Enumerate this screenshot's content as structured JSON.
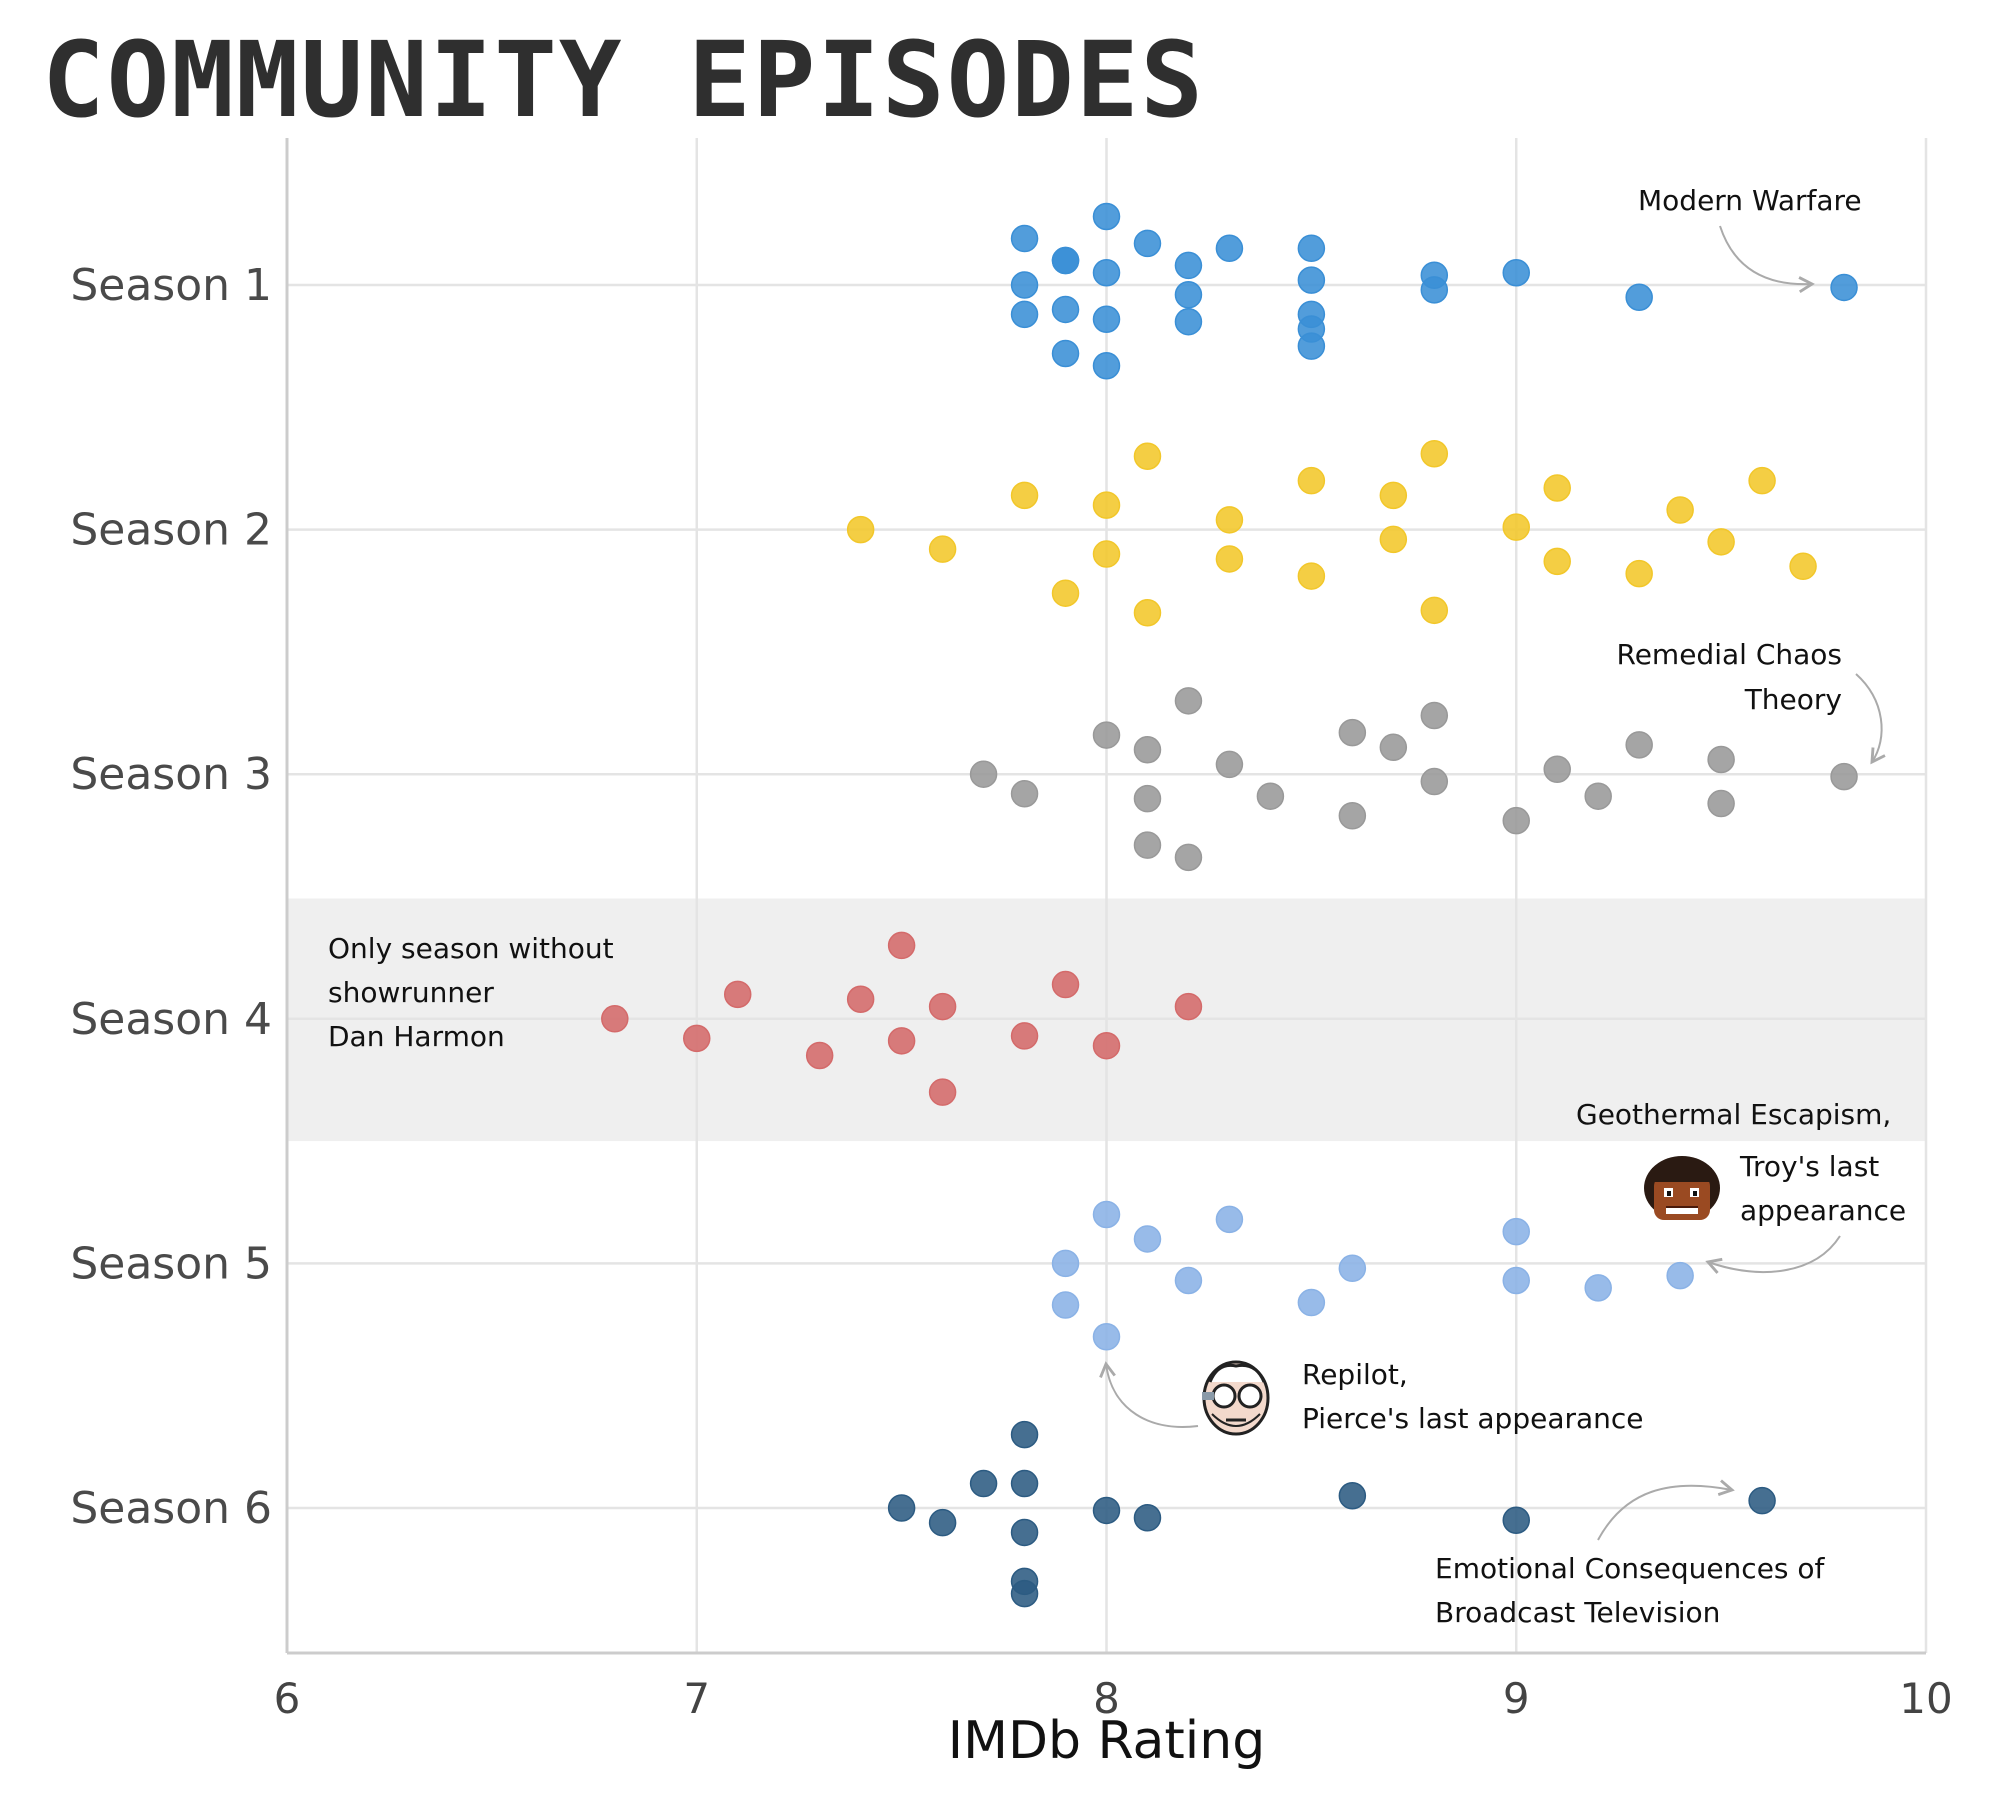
{
  "page": {
    "title": "COMMUNITY EPISODES"
  },
  "chart_data": {
    "type": "scatter",
    "title": "COMMUNITY EPISODES",
    "xlabel": "IMDb Rating",
    "ylabel": "",
    "xlim": [
      6,
      10
    ],
    "x_ticks": [
      "6",
      "7",
      "8",
      "9",
      "10"
    ],
    "grid": true,
    "categories": [
      "Season 1",
      "Season 2",
      "Season 3",
      "Season 4",
      "Season 5",
      "Season 6"
    ],
    "highlighted_category": "Season 4",
    "series": [
      {
        "name": "Season 1",
        "color": "#3a8fd6",
        "values": [
          8.0,
          7.8,
          7.9,
          8.1,
          7.9,
          8.3,
          8.5,
          8.2,
          7.8,
          8.0,
          8.5,
          8.8,
          9.0,
          8.2,
          8.8,
          9.8,
          9.3,
          7.9,
          7.8,
          8.5,
          8.0,
          8.2,
          8.5,
          8.5,
          7.9,
          8.0
        ]
      },
      {
        "name": "Season 2",
        "color": "#f2c72a",
        "values": [
          8.8,
          8.1,
          9.6,
          8.5,
          9.1,
          7.8,
          8.7,
          8.0,
          9.4,
          8.3,
          9.0,
          7.4,
          9.5,
          8.7,
          7.6,
          8.0,
          8.3,
          9.1,
          9.7,
          9.3,
          8.5,
          7.9,
          8.1,
          8.8
        ]
      },
      {
        "name": "Season 3",
        "color": "#999999",
        "values": [
          8.2,
          8.8,
          8.0,
          8.6,
          8.1,
          8.7,
          9.3,
          8.3,
          9.5,
          9.1,
          7.7,
          8.8,
          9.8,
          7.8,
          8.1,
          8.4,
          9.2,
          9.5,
          8.6,
          9.0,
          8.1,
          8.2
        ]
      },
      {
        "name": "Season 4",
        "color": "#d46a6a",
        "values": [
          7.5,
          7.9,
          7.1,
          7.4,
          7.6,
          8.2,
          6.8,
          7.0,
          7.5,
          7.8,
          8.0,
          7.3,
          7.6
        ]
      },
      {
        "name": "Season 5",
        "color": "#8ab2e6",
        "values": [
          8.0,
          8.3,
          9.0,
          8.1,
          8.6,
          9.4,
          7.9,
          8.2,
          9.0,
          9.2,
          7.9,
          8.5,
          8.0
        ]
      },
      {
        "name": "Season 6",
        "color": "#2c5b82",
        "values": [
          7.8,
          7.7,
          7.8,
          8.6,
          9.6,
          8.0,
          7.5,
          8.1,
          7.6,
          9.0,
          7.8,
          7.8,
          7.8
        ]
      }
    ],
    "offsets": [
      [
        -0.28,
        -0.19,
        -0.1,
        -0.17,
        -0.1,
        -0.15,
        -0.15,
        -0.08,
        0.0,
        -0.05,
        -0.02,
        -0.04,
        -0.05,
        0.04,
        0.02,
        0.01,
        0.05,
        0.1,
        0.12,
        0.12,
        0.14,
        0.15,
        0.18,
        0.25,
        0.28,
        0.33
      ],
      [
        -0.31,
        -0.3,
        -0.2,
        -0.2,
        -0.17,
        -0.14,
        -0.14,
        -0.1,
        -0.08,
        -0.04,
        -0.01,
        0.0,
        0.05,
        0.04,
        0.08,
        0.1,
        0.12,
        0.13,
        0.15,
        0.18,
        0.19,
        0.26,
        0.34,
        0.33
      ],
      [
        -0.3,
        -0.24,
        -0.16,
        -0.17,
        -0.1,
        -0.11,
        -0.12,
        -0.04,
        -0.06,
        -0.02,
        0.0,
        0.03,
        0.01,
        0.08,
        0.1,
        0.09,
        0.09,
        0.12,
        0.17,
        0.19,
        0.29,
        0.34
      ],
      [
        -0.3,
        -0.14,
        -0.1,
        -0.08,
        -0.05,
        -0.05,
        0.0,
        0.08,
        0.09,
        0.07,
        0.11,
        0.15,
        0.3
      ],
      [
        -0.2,
        -0.18,
        -0.13,
        -0.1,
        0.02,
        0.05,
        0.0,
        0.07,
        0.07,
        0.1,
        0.17,
        0.16,
        0.3
      ],
      [
        -0.3,
        -0.1,
        -0.1,
        -0.05,
        -0.03,
        0.01,
        0.0,
        0.04,
        0.06,
        0.05,
        0.1,
        0.3,
        0.35
      ]
    ],
    "annotations": [
      {
        "lines": [
          "Modern Warfare"
        ],
        "season": "Season 1",
        "x": 9.8
      },
      {
        "lines": [
          "Remedial Chaos",
          "Theory"
        ],
        "season": "Season 3",
        "x": 9.8
      },
      {
        "lines": [
          "Only season without",
          "showrunner",
          "Dan Harmon"
        ],
        "season": "Season 4"
      },
      {
        "lines": [
          "Geothermal Escapism,",
          "Troy's last",
          "appearance"
        ],
        "season": "Season 5",
        "x": 9.4,
        "icon": "troy-face-icon"
      },
      {
        "lines": [
          "Repilot,",
          "Pierce's last appearance"
        ],
        "season": "Season 5",
        "x": 8.0,
        "icon": "pierce-face-icon"
      },
      {
        "lines": [
          "Emotional Consequences of",
          "Broadcast Television"
        ],
        "season": "Season 6",
        "x": 9.6
      }
    ]
  }
}
